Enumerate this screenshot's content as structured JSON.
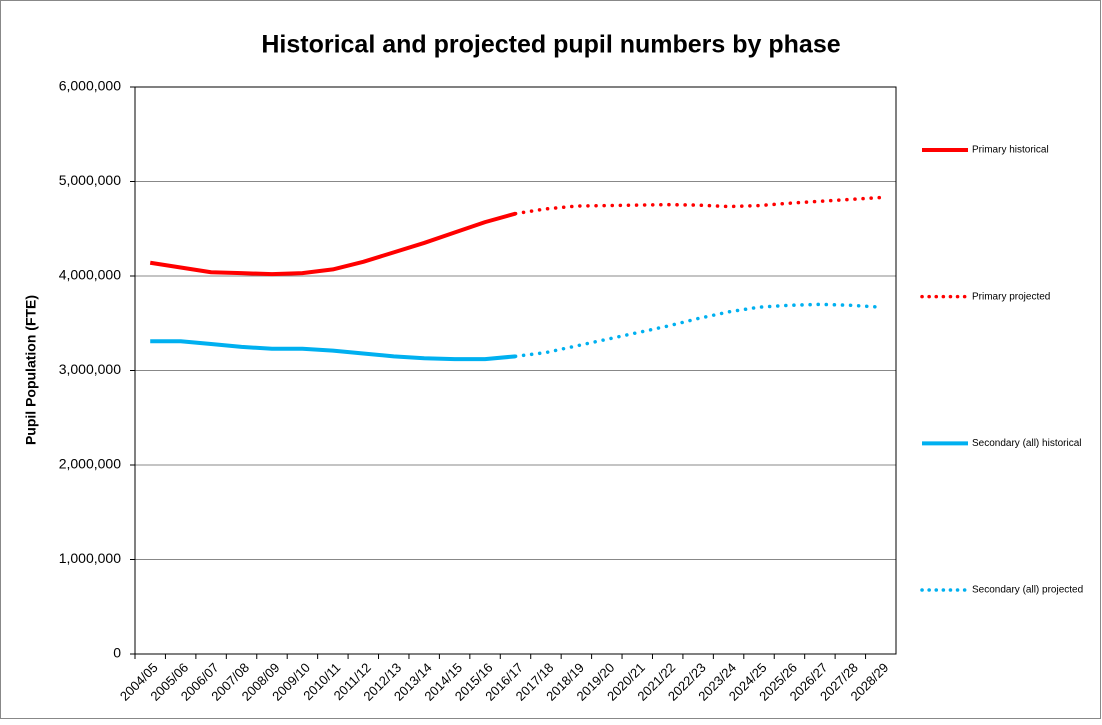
{
  "chart_data": {
    "type": "line",
    "title": "Historical and projected pupil numbers by phase",
    "y_label": "Pupil Population (FTE)",
    "categories": [
      "2004/05",
      "2005/06",
      "2006/07",
      "2007/08",
      "2008/09",
      "2009/10",
      "2010/11",
      "2011/12",
      "2012/13",
      "2013/14",
      "2014/15",
      "2015/16",
      "2016/17",
      "2017/18",
      "2018/19",
      "2019/20",
      "2020/21",
      "2021/22",
      "2022/23",
      "2023/24",
      "2024/25",
      "2025/26",
      "2026/27",
      "2027/28",
      "2028/29"
    ],
    "series": [
      {
        "name": "Primary historical",
        "color": "#ff0000",
        "line_style": "solid",
        "values": [
          4140000,
          4090000,
          4040000,
          4030000,
          4020000,
          4030000,
          4070000,
          4150000,
          4250000,
          4350000,
          4460000,
          4570000,
          4660000,
          null,
          null,
          null,
          null,
          null,
          null,
          null,
          null,
          null,
          null,
          null,
          null
        ]
      },
      {
        "name": "Primary projected",
        "color": "#ff0000",
        "line_style": "dotted",
        "values": [
          null,
          null,
          null,
          null,
          null,
          null,
          null,
          null,
          null,
          null,
          null,
          null,
          4660000,
          4710000,
          4740000,
          4745000,
          4750000,
          4755000,
          4750000,
          4735000,
          4745000,
          4770000,
          4790000,
          4810000,
          4830000
        ]
      },
      {
        "name": "Secondary (all) historical",
        "color": "#00b0f0",
        "line_style": "solid",
        "values": [
          3310000,
          3310000,
          3280000,
          3250000,
          3230000,
          3230000,
          3210000,
          3180000,
          3150000,
          3130000,
          3120000,
          3120000,
          3150000,
          null,
          null,
          null,
          null,
          null,
          null,
          null,
          null,
          null,
          null,
          null,
          null
        ]
      },
      {
        "name": "Secondary (all) projected",
        "color": "#00b0f0",
        "line_style": "dotted",
        "values": [
          null,
          null,
          null,
          null,
          null,
          null,
          null,
          null,
          null,
          null,
          null,
          null,
          3150000,
          3190000,
          3260000,
          3330000,
          3400000,
          3470000,
          3550000,
          3620000,
          3670000,
          3690000,
          3700000,
          3690000,
          3670000
        ]
      }
    ],
    "ylim": [
      0,
      6000000
    ],
    "yticks": [
      0,
      {
        "value": 1000000,
        "label": "1,000,000"
      },
      {
        "value": 2000000,
        "label": "2,000,000"
      },
      {
        "value": 3000000,
        "label": "3,000,000"
      },
      {
        "value": 4000000,
        "label": "4,000,000"
      },
      {
        "value": 5000000,
        "label": "5,000,000"
      },
      {
        "value": 6000000,
        "label": "6,000,000"
      }
    ],
    "grid": true,
    "legend": "right"
  }
}
